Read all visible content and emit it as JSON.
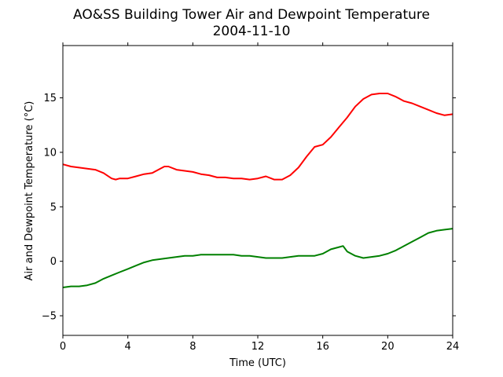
{
  "chart_data": {
    "type": "line",
    "title": "AO&SS Building Tower Air and Dewpoint Temperature",
    "subtitle": "2004-11-10",
    "xlabel": "Time (UTC)",
    "ylabel": "Air and Dewpoint Temperature (°C)",
    "xlim": [
      0,
      24
    ],
    "ylim": [
      -6.8,
      19.8
    ],
    "xticks": [
      0,
      4,
      8,
      12,
      16,
      20,
      24
    ],
    "yticks": [
      -5,
      0,
      5,
      10,
      15
    ],
    "ytick_labels": [
      "−5",
      "0",
      "5",
      "10",
      "15"
    ],
    "grid": false,
    "series": [
      {
        "color": "#ff0000",
        "x": [
          0,
          0.5,
          1,
          1.5,
          2,
          2.5,
          3,
          3.25,
          3.5,
          4,
          4.5,
          5,
          5.5,
          6,
          6.25,
          6.5,
          7,
          7.5,
          8,
          8.5,
          9,
          9.5,
          10,
          10.5,
          11,
          11.5,
          12,
          12.5,
          13,
          13.5,
          14,
          14.5,
          15,
          15.5,
          16,
          16.5,
          17,
          17.5,
          18,
          18.5,
          19,
          19.5,
          20,
          20.5,
          21,
          21.5,
          22,
          22.5,
          23,
          23.5,
          24
        ],
        "y": [
          8.9,
          8.7,
          8.6,
          8.5,
          8.4,
          8.1,
          7.6,
          7.5,
          7.6,
          7.6,
          7.8,
          8.0,
          8.1,
          8.5,
          8.7,
          8.7,
          8.4,
          8.3,
          8.2,
          8.0,
          7.9,
          7.7,
          7.7,
          7.6,
          7.6,
          7.5,
          7.6,
          7.8,
          7.5,
          7.5,
          7.9,
          8.6,
          9.6,
          10.5,
          10.7,
          11.4,
          12.3,
          13.2,
          14.2,
          14.9,
          15.3,
          15.4,
          15.4,
          15.1,
          14.7,
          14.5,
          14.2,
          13.9,
          13.6,
          13.4,
          13.5
        ]
      },
      {
        "color": "#008000",
        "x": [
          0,
          0.5,
          1,
          1.5,
          2,
          2.5,
          3,
          3.5,
          4,
          4.5,
          5,
          5.5,
          6,
          6.5,
          7,
          7.5,
          8,
          8.5,
          9,
          9.5,
          10,
          10.5,
          11,
          11.5,
          12,
          12.5,
          13,
          13.5,
          14,
          14.5,
          15,
          15.5,
          16,
          16.5,
          17,
          17.25,
          17.5,
          18,
          18.5,
          19,
          19.5,
          20,
          20.5,
          21,
          21.5,
          22,
          22.5,
          23,
          23.5,
          24
        ],
        "y": [
          -2.4,
          -2.3,
          -2.3,
          -2.2,
          -2.0,
          -1.6,
          -1.3,
          -1.0,
          -0.7,
          -0.4,
          -0.1,
          0.1,
          0.2,
          0.3,
          0.4,
          0.5,
          0.5,
          0.6,
          0.6,
          0.6,
          0.6,
          0.6,
          0.5,
          0.5,
          0.4,
          0.3,
          0.3,
          0.3,
          0.4,
          0.5,
          0.5,
          0.5,
          0.7,
          1.1,
          1.3,
          1.4,
          0.9,
          0.5,
          0.3,
          0.4,
          0.5,
          0.7,
          1.0,
          1.4,
          1.8,
          2.2,
          2.6,
          2.8,
          2.9,
          3.0
        ]
      }
    ]
  }
}
